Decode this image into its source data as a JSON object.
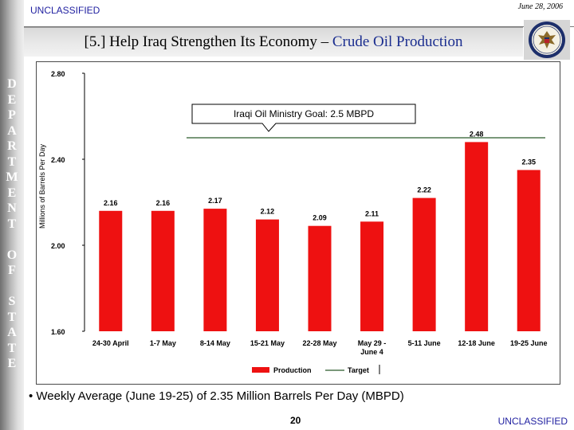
{
  "header": {
    "classification": "UNCLASSIFIED",
    "date": "June 28, 2006",
    "title_main": "[5.] Help Iraq Strengthen Its Economy – ",
    "title_highlight": "Crude Oil Production"
  },
  "sidebar": {
    "letters": [
      "D",
      "E",
      "P",
      "A",
      "R",
      "T",
      "M",
      "E",
      "N",
      "T",
      "",
      "O",
      "F",
      "",
      "S",
      "T",
      "A",
      "T",
      "E"
    ]
  },
  "chart_data": {
    "type": "bar",
    "title": "",
    "xlabel": "",
    "ylabel": "Millions of Barrels Per Day",
    "categories": [
      "24-30 April",
      "1-7 May",
      "8-14 May",
      "15-21 May",
      "22-28 May",
      "May 29 - June 4",
      "5-11 June",
      "12-18 June",
      "19-25 June"
    ],
    "series": [
      {
        "name": "Production",
        "values": [
          2.16,
          2.16,
          2.17,
          2.12,
          2.09,
          2.11,
          2.22,
          2.48,
          2.35
        ],
        "color": "#ee1111"
      }
    ],
    "data_labels": [
      "2.16",
      "2.16",
      "2.17",
      "2.12",
      "2.09",
      "2.11",
      "2.22",
      "2.48",
      "2.35"
    ],
    "target": {
      "name": "Target",
      "value": 2.5,
      "color": "#2b5a2b"
    },
    "annotation": "Iraqi Oil Ministry Goal:  2.5 MBPD",
    "ylim": [
      1.6,
      2.8
    ],
    "yticks": [
      "1.60",
      "2.00",
      "2.40",
      "2.80"
    ],
    "grid": false,
    "legend_position": "bottom"
  },
  "footer": {
    "bullet": "• Weekly Average (June 19-25) of 2.35 Million Barrels Per Day (MBPD)",
    "page_number": "20",
    "classification": "UNCLASSIFIED"
  }
}
